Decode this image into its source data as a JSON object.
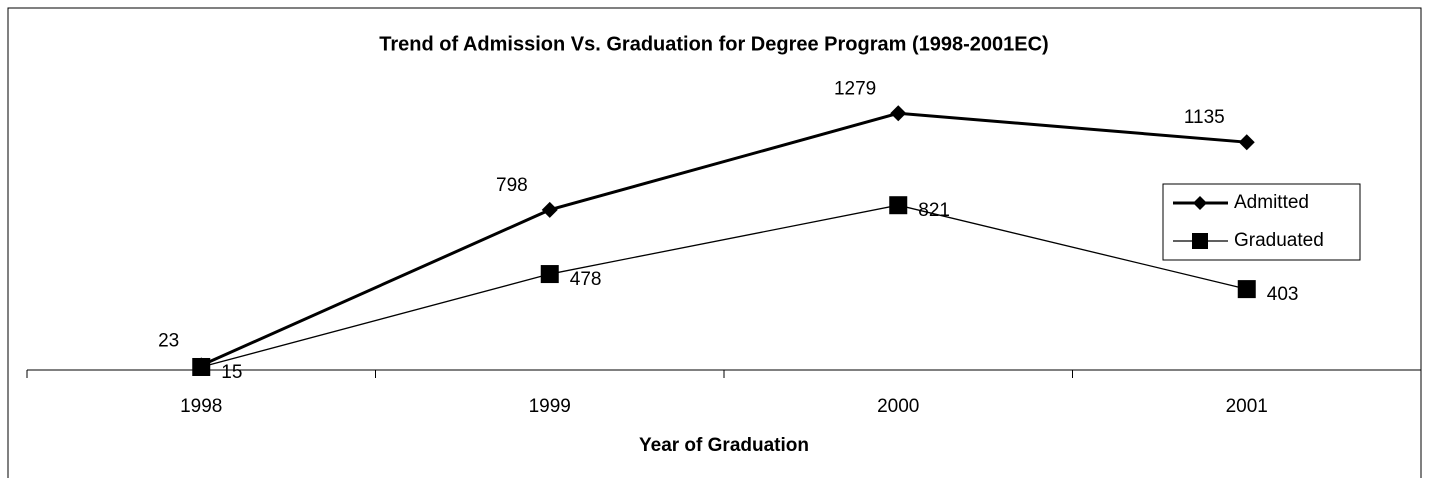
{
  "chart_data": {
    "type": "line",
    "title": "Trend of Admission Vs. Graduation for Degree Program (1998-2001EC)",
    "x_label": "Year of Graduation",
    "categories": [
      "1998",
      "1999",
      "2000",
      "2001"
    ],
    "series": [
      {
        "name": "Admitted",
        "color": "#000000",
        "marker": "diamond",
        "values": [
          23,
          798,
          1279,
          1135
        ]
      },
      {
        "name": "Graduated",
        "color": "#000000",
        "marker": "square",
        "values": [
          15,
          478,
          821,
          403
        ]
      }
    ],
    "ylim": [
      0,
      1400
    ],
    "legend": "right"
  }
}
